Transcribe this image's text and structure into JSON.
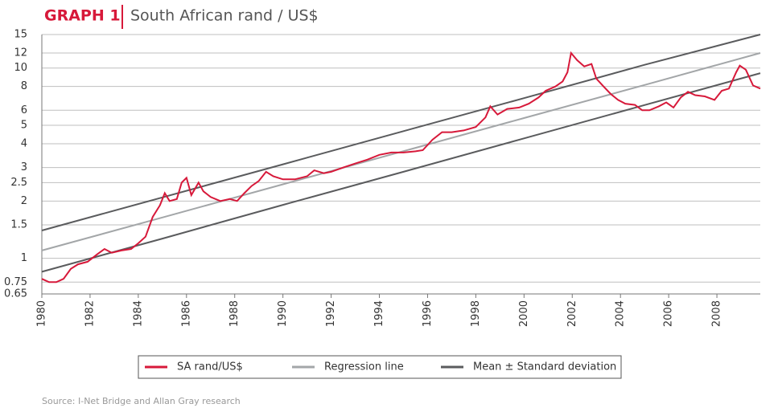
{
  "chart_data": {
    "type": "line",
    "title_label": "GRAPH 1",
    "title": "South African rand / US$",
    "source": "Source: I-Net Bridge and Allan Gray research",
    "log_y": true,
    "grid": true,
    "xlim": [
      1980,
      2009.8
    ],
    "xticks": [
      1980,
      1982,
      1984,
      1986,
      1988,
      1990,
      1992,
      1994,
      1996,
      1998,
      2000,
      2002,
      2004,
      2006,
      2008
    ],
    "ylim": [
      0.65,
      15
    ],
    "yticks": [
      0.65,
      0.75,
      1,
      1.5,
      2,
      2.5,
      3,
      4,
      5,
      6,
      8,
      10,
      12,
      15
    ],
    "series": [
      {
        "name": "SA rand/US$",
        "color": "#d7193a",
        "x": [
          1980.0,
          1980.3,
          1980.6,
          1980.9,
          1981.2,
          1981.5,
          1981.9,
          1982.3,
          1982.6,
          1982.9,
          1983.3,
          1983.7,
          1984.0,
          1984.3,
          1984.6,
          1984.9,
          1985.1,
          1985.3,
          1985.6,
          1985.8,
          1986.0,
          1986.2,
          1986.5,
          1986.7,
          1987.0,
          1987.4,
          1987.8,
          1988.1,
          1988.4,
          1988.7,
          1989.0,
          1989.3,
          1989.6,
          1990.0,
          1990.5,
          1991.0,
          1991.3,
          1991.7,
          1992.0,
          1992.5,
          1993.0,
          1993.5,
          1994.0,
          1994.5,
          1995.0,
          1995.5,
          1995.8,
          1996.2,
          1996.6,
          1997.0,
          1997.5,
          1998.0,
          1998.4,
          1998.6,
          1998.9,
          1999.3,
          1999.8,
          2000.2,
          2000.6,
          2000.9,
          2001.3,
          2001.6,
          2001.8,
          2001.95,
          2002.2,
          2002.5,
          2002.8,
          2003.0,
          2003.3,
          2003.6,
          2003.9,
          2004.2,
          2004.6,
          2004.9,
          2005.2,
          2005.6,
          2005.9,
          2006.2,
          2006.5,
          2006.8,
          2007.1,
          2007.5,
          2007.9,
          2008.2,
          2008.5,
          2008.8,
          2008.95,
          2009.2,
          2009.5,
          2009.8
        ],
        "values": [
          0.78,
          0.75,
          0.75,
          0.78,
          0.88,
          0.93,
          0.96,
          1.05,
          1.12,
          1.07,
          1.1,
          1.12,
          1.2,
          1.3,
          1.65,
          1.9,
          2.2,
          2.0,
          2.05,
          2.5,
          2.65,
          2.15,
          2.5,
          2.25,
          2.1,
          2.0,
          2.05,
          2.0,
          2.2,
          2.4,
          2.55,
          2.85,
          2.7,
          2.6,
          2.6,
          2.7,
          2.9,
          2.8,
          2.85,
          3.0,
          3.15,
          3.3,
          3.5,
          3.6,
          3.6,
          3.65,
          3.7,
          4.2,
          4.6,
          4.6,
          4.7,
          4.9,
          5.5,
          6.3,
          5.7,
          6.1,
          6.2,
          6.5,
          7.0,
          7.6,
          8.0,
          8.5,
          9.5,
          12.0,
          11.0,
          10.2,
          10.5,
          8.8,
          8.0,
          7.3,
          6.8,
          6.5,
          6.4,
          6.0,
          6.0,
          6.3,
          6.6,
          6.2,
          7.0,
          7.5,
          7.2,
          7.1,
          6.8,
          7.6,
          7.8,
          9.5,
          10.3,
          9.8,
          8.1,
          7.8
        ]
      },
      {
        "name": "Regression line",
        "color": "#a3a6a8",
        "x": [
          1980,
          1985,
          1990,
          1995,
          2000,
          2005,
          2009.8
        ],
        "values": [
          1.1,
          1.64,
          2.45,
          3.66,
          5.46,
          8.15,
          12
        ]
      },
      {
        "name": "Mean ± Standard deviation",
        "color": "#5a5b5d",
        "x": [
          1980,
          1985,
          1990,
          1995,
          2000,
          2005,
          2009.8
        ],
        "values": [
          1.4,
          2.09,
          3.12,
          4.66,
          6.95,
          10.4,
          15
        ],
        "values_lower": [
          0.85,
          1.27,
          1.91,
          2.85,
          4.27,
          6.39,
          9.4
        ]
      }
    ]
  }
}
